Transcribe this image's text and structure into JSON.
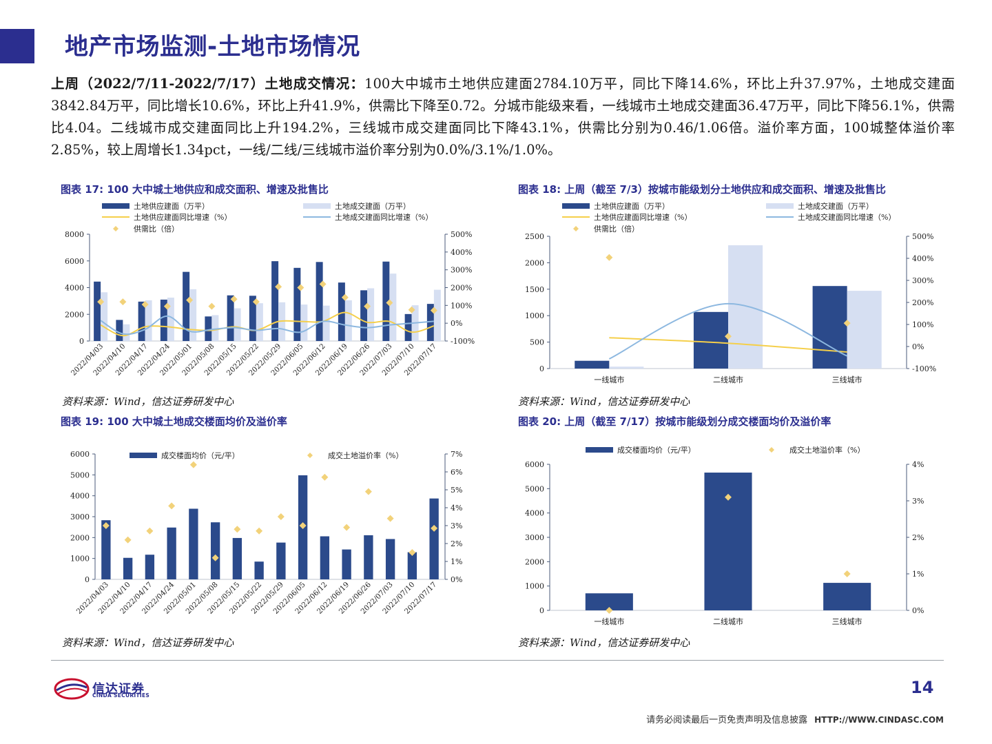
{
  "page": {
    "title": "地产市场监测-土地市场情况",
    "summary_lead": "上周（2022/7/11-2022/7/17）土地成交情况：",
    "summary_body": "100大中城市土地供应建面2784.10万平，同比下降14.6%，环比上升37.97%，土地成交建面3842.84万平，同比增长10.6%，环比上升41.9%，供需比下降至0.72。分城市能级来看，一线城市土地成交建面36.47万平，同比下降56.1%，供需比4.04。二线城市成交建面同比上升194.2%，三线城市成交建面同比下降43.1%，供需比分别为0.46/1.06倍。溢价率方面，100城整体溢价率2.85%，较上周增长1.34pct，一线/二线/三线城市溢价率分别为0.0%/3.1%/1.0%。",
    "page_number": "14",
    "disclaimer": "请务必阅读最后一页免责声明及信息披露",
    "url": "HTTP://WWW.CINDASC.COM",
    "logo_cn": "信达证券",
    "logo_en": "CINDA SECURITIES"
  },
  "colors": {
    "navy": "#2b4a8b",
    "light": "#d6dff2",
    "yellow": "#f5cf4a",
    "blue_line": "#8db8e0",
    "diamond": "#f2d27a",
    "title": "#2b2e8f"
  },
  "chart_data": [
    {
      "id": "c17",
      "type": "bar",
      "title": "图表 17:  100 大中城土地供应和成交面积、增速及批售比",
      "source": "资料来源：Wind，信达证券研发中心",
      "categories": [
        "2022/04/03",
        "2022/04/10",
        "2022/04/17",
        "2022/04/24",
        "2022/05/01",
        "2022/05/08",
        "2022/05/15",
        "2022/05/22",
        "2022/05/29",
        "2022/06/05",
        "2022/06/12",
        "2022/06/19",
        "2022/06/26",
        "2022/07/03",
        "2022/07/10",
        "2022/07/17"
      ],
      "ylim": [
        0,
        8000
      ],
      "yticks": [
        "0",
        "2000",
        "4000",
        "6000",
        "8000"
      ],
      "y2lim": [
        -100,
        500
      ],
      "y2ticks": [
        "-100%",
        "0%",
        "100%",
        "200%",
        "300%",
        "400%",
        "500%"
      ],
      "legend": [
        "土地供应建面（万平）",
        "土地成交建面（万平）",
        "土地供应建面同比增速（%）",
        "土地成交建面同比增速（%）",
        "供需比（倍）"
      ],
      "series": [
        {
          "name": "土地供应建面（万平）",
          "kind": "bar",
          "values": [
            4450,
            1580,
            2950,
            3100,
            5180,
            1840,
            3420,
            3390,
            5980,
            5480,
            5920,
            4380,
            3800,
            5950,
            2020,
            2780
          ]
        },
        {
          "name": "土地成交建面（万平）",
          "kind": "bar",
          "values": [
            3650,
            1250,
            3050,
            3250,
            3880,
            1940,
            2450,
            2830,
            2900,
            2730,
            2650,
            3050,
            3950,
            5050,
            2680,
            3840
          ]
        },
        {
          "name": "土地供应建面同比增速（%）",
          "kind": "line",
          "values": [
            -10,
            -70,
            -20,
            -20,
            -35,
            -40,
            -20,
            -40,
            10,
            10,
            10,
            60,
            5,
            10,
            -50,
            -15
          ]
        },
        {
          "name": "土地成交建面同比增速（%）",
          "kind": "line",
          "values": [
            15,
            -60,
            -35,
            40,
            -45,
            -35,
            -25,
            -40,
            -30,
            -50,
            10,
            -10,
            -25,
            -10,
            0,
            11
          ]
        },
        {
          "name": "供需比（倍）",
          "kind": "diamond",
          "values": [
            120,
            120,
            105,
            95,
            130,
            95,
            135,
            120,
            205,
            200,
            220,
            145,
            95,
            115,
            75,
            72
          ]
        }
      ]
    },
    {
      "id": "c18",
      "type": "bar",
      "title": "图表 18:  上周（截至 7/3）按城市能级划分土地供应和成交面积、增速及批售比",
      "source": "资料来源：Wind，信达证券研发中心",
      "categories": [
        "一线城市",
        "二线城市",
        "三线城市"
      ],
      "ylim": [
        0,
        2500
      ],
      "yticks": [
        "0",
        "500",
        "1000",
        "1500",
        "2000",
        "2500"
      ],
      "y2lim": [
        -100,
        500
      ],
      "y2ticks": [
        "-100%",
        "0%",
        "100%",
        "200%",
        "300%",
        "400%",
        "500%"
      ],
      "legend": [
        "土地供应建面（万平）",
        "土地成交建面（万平）",
        "土地供应建面同比增速（%）",
        "土地成交建面同比增速（%）",
        "供需比（倍）"
      ],
      "series": [
        {
          "name": "土地供应建面（万平）",
          "kind": "bar",
          "values": [
            147,
            1070,
            1560
          ]
        },
        {
          "name": "土地成交建面（万平）",
          "kind": "bar",
          "values": [
            36,
            2330,
            1470
          ]
        },
        {
          "name": "土地供应建面同比增速（%）",
          "kind": "line",
          "values": [
            40,
            15,
            -25
          ]
        },
        {
          "name": "土地成交建面同比增速（%）",
          "kind": "line",
          "values": [
            -56,
            194,
            -43
          ]
        },
        {
          "name": "供需比（倍）",
          "kind": "diamond",
          "values": [
            404,
            46,
            106
          ]
        }
      ]
    },
    {
      "id": "c19",
      "type": "bar",
      "title": "图表 19:  100 大中城土地成交楼面均价及溢价率",
      "source": "资料来源：Wind，信达证券研发中心",
      "categories": [
        "2022/04/03",
        "2022/04/10",
        "2022/04/17",
        "2022/04/24",
        "2022/05/01",
        "2022/05/08",
        "2022/05/15",
        "2022/05/22",
        "2022/05/29",
        "2022/06/05",
        "2022/06/12",
        "2022/06/19",
        "2022/06/26",
        "2022/07/03",
        "2022/07/10",
        "2022/07/17"
      ],
      "ylim": [
        0,
        6000
      ],
      "yticks": [
        "0",
        "1000",
        "2000",
        "3000",
        "4000",
        "5000",
        "6000"
      ],
      "y2lim": [
        0,
        7
      ],
      "y2ticks": [
        "0%",
        "1%",
        "2%",
        "3%",
        "4%",
        "5%",
        "6%",
        "7%"
      ],
      "legend": [
        "成交楼面均价（元/平）",
        "成交土地溢价率（%）"
      ],
      "series": [
        {
          "name": "成交楼面均价（元/平）",
          "kind": "bar",
          "values": [
            2830,
            1030,
            1180,
            2480,
            3380,
            2730,
            1980,
            850,
            1760,
            4980,
            2060,
            1430,
            2110,
            1930,
            1300,
            3870
          ]
        },
        {
          "name": "成交土地溢价率（%）",
          "kind": "diamond",
          "values": [
            3.0,
            2.2,
            2.7,
            4.1,
            6.4,
            1.2,
            2.8,
            2.7,
            3.5,
            3.0,
            5.7,
            2.9,
            4.9,
            3.4,
            1.5,
            2.85
          ]
        }
      ]
    },
    {
      "id": "c20",
      "type": "bar",
      "title": "图表 20:  上周（截至 7/17）按城市能级划分成交楼面均价及溢价率",
      "source": "资料来源：Wind，信达证券研发中心",
      "categories": [
        "一线城市",
        "二线城市",
        "三线城市"
      ],
      "ylim": [
        0,
        6000
      ],
      "yticks": [
        "0",
        "1000",
        "2000",
        "3000",
        "4000",
        "5000",
        "6000"
      ],
      "y2lim": [
        0,
        4
      ],
      "y2ticks": [
        "0%",
        "1%",
        "2%",
        "3%",
        "4%"
      ],
      "legend": [
        "成交楼面均价（元/平）",
        "成交土地溢价率（%）"
      ],
      "series": [
        {
          "name": "成交楼面均价（元/平）",
          "kind": "bar",
          "values": [
            700,
            5660,
            1130
          ]
        },
        {
          "name": "成交土地溢价率（%）",
          "kind": "diamond",
          "values": [
            0.0,
            3.1,
            1.0
          ]
        }
      ]
    }
  ]
}
